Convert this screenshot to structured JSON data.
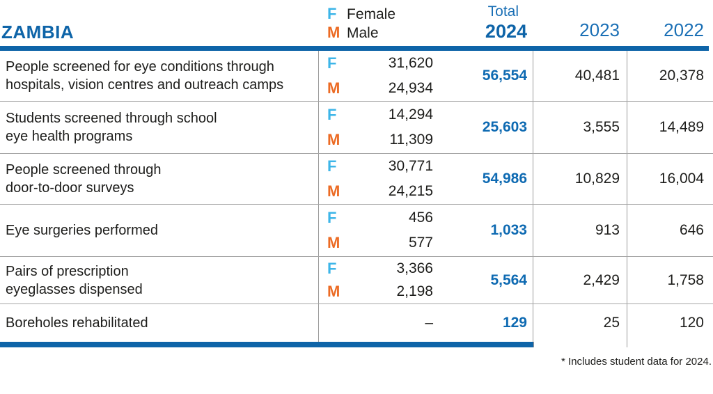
{
  "table": {
    "region_label": "ZAMBIA",
    "legend": {
      "female_abbr": "F",
      "female_label": "Female",
      "male_abbr": "M",
      "male_label": "Male"
    },
    "columns": {
      "total_label": "Total",
      "total_year": "2024",
      "year_2023": "2023",
      "year_2022": "2022"
    },
    "rows": [
      {
        "label_line1": "People screened for eye conditions through",
        "label_line2": "hospitals, vision centres and outreach camps",
        "female": "31,620",
        "male": "24,934",
        "total": "56,554",
        "y2023": "40,481",
        "y2022": "20,378"
      },
      {
        "label_line1": "Students screened through school",
        "label_line2": "eye health programs",
        "female": "14,294",
        "male": "11,309",
        "total": "25,603",
        "y2023": "3,555",
        "y2022": "14,489"
      },
      {
        "label_line1": "People screened through",
        "label_line2": "door-to-door surveys",
        "female": "30,771",
        "male": "24,215",
        "total": "54,986",
        "y2023": "10,829",
        "y2022": "16,004"
      },
      {
        "label_line1": "Eye surgeries performed",
        "label_line2": "",
        "female": "456",
        "male": "577",
        "total": "1,033",
        "y2023": "913",
        "y2022": "646"
      },
      {
        "label_line1": "Pairs of prescription",
        "label_line2": "eyeglasses dispensed",
        "female": "3,366",
        "male": "2,198",
        "total": "5,564",
        "y2023": "2,429",
        "y2022": "1,758"
      },
      {
        "label_line1": "Boreholes rehabilitated",
        "label_line2": "",
        "dash": "–",
        "total": "129",
        "y2023": "25",
        "y2022": "120"
      }
    ],
    "footnote": "* Includes student data for 2024.",
    "colors": {
      "brand_blue": "#0e64a8",
      "female_cyan": "#3db5e8",
      "male_orange": "#ec6b24",
      "grid_gray": "#999999",
      "text_black": "#1d1d1b"
    }
  }
}
